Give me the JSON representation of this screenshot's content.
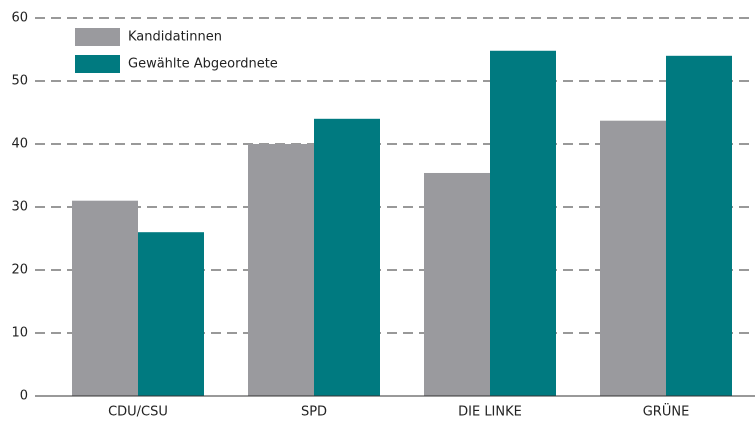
{
  "chart_data": {
    "type": "bar",
    "categories": [
      "CDU/CSU",
      "SPD",
      "DIE LINKE",
      "GRÜNE"
    ],
    "series": [
      {
        "name": "Kandidatinnen",
        "color": "#9a9a9e",
        "values": [
          31,
          40,
          35.4,
          43.7
        ]
      },
      {
        "name": "Gewählte Abgeordnete",
        "color": "#007a80",
        "values": [
          26,
          44,
          54.8,
          54
        ]
      }
    ],
    "ylim": [
      0,
      60
    ],
    "yticks": [
      0,
      10,
      20,
      30,
      40,
      50,
      60
    ],
    "grid": true,
    "legend": "top-left"
  }
}
